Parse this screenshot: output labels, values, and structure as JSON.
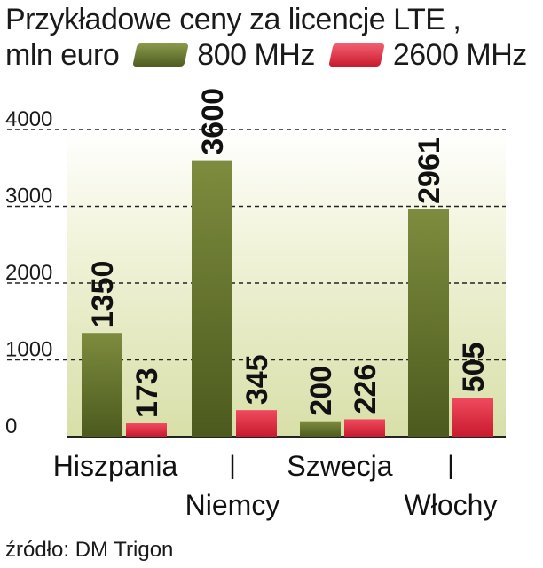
{
  "source": "źródło: DM Trigon",
  "colors": {
    "s800": "#5d6b2a",
    "s2600": "#d82338"
  },
  "chart_data": {
    "type": "bar",
    "title_line1": "Przykładowe ceny za licencje  LTE ,",
    "title_line2": "mln euro",
    "categories": [
      "Hiszpania",
      "Niemcy",
      "Szwecja",
      "Włochy"
    ],
    "separator": "|",
    "series": [
      {
        "name": "800 MHz",
        "values": [
          1350,
          3600,
          200,
          2961
        ]
      },
      {
        "name": "2600 MHz",
        "values": [
          173,
          345,
          226,
          505
        ]
      }
    ],
    "yticks": [
      "4000",
      "3000",
      "2000",
      "1000",
      "0"
    ],
    "ylim": [
      0,
      4000
    ],
    "grid": true,
    "legend": "top"
  }
}
